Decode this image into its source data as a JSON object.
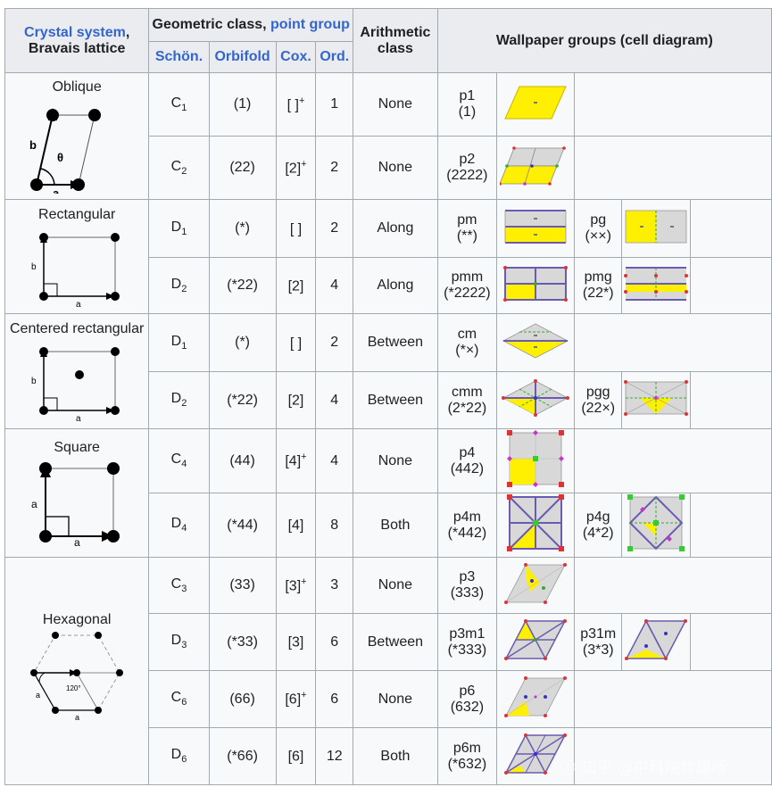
{
  "header": {
    "crystal_system": "Crystal system",
    "comma": ",",
    "bravais_lattice": "Bravais lattice",
    "geometric_class": "Geometric class, ",
    "point_group": "point group",
    "schon": "Schön.",
    "orbifold": "Orbifold",
    "cox": "Cox.",
    "ord": "Ord.",
    "arith_1": "Arithmetic",
    "arith_2": "class",
    "wallpaper": "Wallpaper groups (cell diagram)"
  },
  "systems": [
    {
      "name": "Oblique",
      "labels": {
        "b": "b",
        "theta": "θ",
        "a": "a"
      }
    },
    {
      "name": "Rectangular",
      "labels": {
        "b": "b",
        "a": "a"
      }
    },
    {
      "name": "Centered rectangular",
      "labels": {
        "b": "b",
        "a": "a"
      }
    },
    {
      "name": "Square",
      "labels": {
        "a1": "a",
        "a2": "a"
      }
    },
    {
      "name": "Hexagonal",
      "labels": {
        "angle": "120°",
        "a1": "a",
        "a2": "a"
      }
    }
  ],
  "rows": [
    {
      "sch": "C",
      "sch_sub": "1",
      "orb": "(1)",
      "cox": "[ ]",
      "cox_sup": "+",
      "ord": "1",
      "arith": "None",
      "g1": "p1",
      "g1o": "(1)"
    },
    {
      "sch": "C",
      "sch_sub": "2",
      "orb": "(22)",
      "cox": "[2]",
      "cox_sup": "+",
      "ord": "2",
      "arith": "None",
      "g1": "p2",
      "g1o": "(2222)"
    },
    {
      "sch": "D",
      "sch_sub": "1",
      "orb": "(*)",
      "cox": "[ ]",
      "cox_sup": "",
      "ord": "2",
      "arith": "Along",
      "g1": "pm",
      "g1o": "(**)",
      "g2": "pg",
      "g2o": "(××)"
    },
    {
      "sch": "D",
      "sch_sub": "2",
      "orb": "(*22)",
      "cox": "[2]",
      "cox_sup": "",
      "ord": "4",
      "arith": "Along",
      "g1": "pmm",
      "g1o": "(*2222)",
      "g2": "pmg",
      "g2o": "(22*)"
    },
    {
      "sch": "D",
      "sch_sub": "1",
      "orb": "(*)",
      "cox": "[ ]",
      "cox_sup": "",
      "ord": "2",
      "arith": "Between",
      "g1": "cm",
      "g1o": "(*×)"
    },
    {
      "sch": "D",
      "sch_sub": "2",
      "orb": "(*22)",
      "cox": "[2]",
      "cox_sup": "",
      "ord": "4",
      "arith": "Between",
      "g1": "cmm",
      "g1o": "(2*22)",
      "g2": "pgg",
      "g2o": "(22×)"
    },
    {
      "sch": "C",
      "sch_sub": "4",
      "orb": "(44)",
      "cox": "[4]",
      "cox_sup": "+",
      "ord": "4",
      "arith": "None",
      "g1": "p4",
      "g1o": "(442)"
    },
    {
      "sch": "D",
      "sch_sub": "4",
      "orb": "(*44)",
      "cox": "[4]",
      "cox_sup": "",
      "ord": "8",
      "arith": "Both",
      "g1": "p4m",
      "g1o": "(*442)",
      "g2": "p4g",
      "g2o": "(4*2)"
    },
    {
      "sch": "C",
      "sch_sub": "3",
      "orb": "(33)",
      "cox": "[3]",
      "cox_sup": "+",
      "ord": "3",
      "arith": "None",
      "g1": "p3",
      "g1o": "(333)"
    },
    {
      "sch": "D",
      "sch_sub": "3",
      "orb": "(*33)",
      "cox": "[3]",
      "cox_sup": "",
      "ord": "6",
      "arith": "Between",
      "g1": "p3m1",
      "g1o": "(*333)",
      "g2": "p31m",
      "g2o": "(3*3)"
    },
    {
      "sch": "C",
      "sch_sub": "6",
      "orb": "(66)",
      "cox": "[6]",
      "cox_sup": "+",
      "ord": "6",
      "arith": "None",
      "g1": "p6",
      "g1o": "(632)"
    },
    {
      "sch": "D",
      "sch_sub": "6",
      "orb": "(*66)",
      "cox": "[6]",
      "cox_sup": "",
      "ord": "12",
      "arith": "Both",
      "g1": "p6m",
      "g1o": "(*632)"
    }
  ],
  "watermark": "ⓘ 知乎 @中科院物理所",
  "colors": {
    "link": "#3366cc",
    "yellow": "#ffef00",
    "gray": "#d8d8d8",
    "header_bg": "#eaecf0",
    "cell_bg": "#f8f9fa",
    "border": "#a2a9b1"
  }
}
